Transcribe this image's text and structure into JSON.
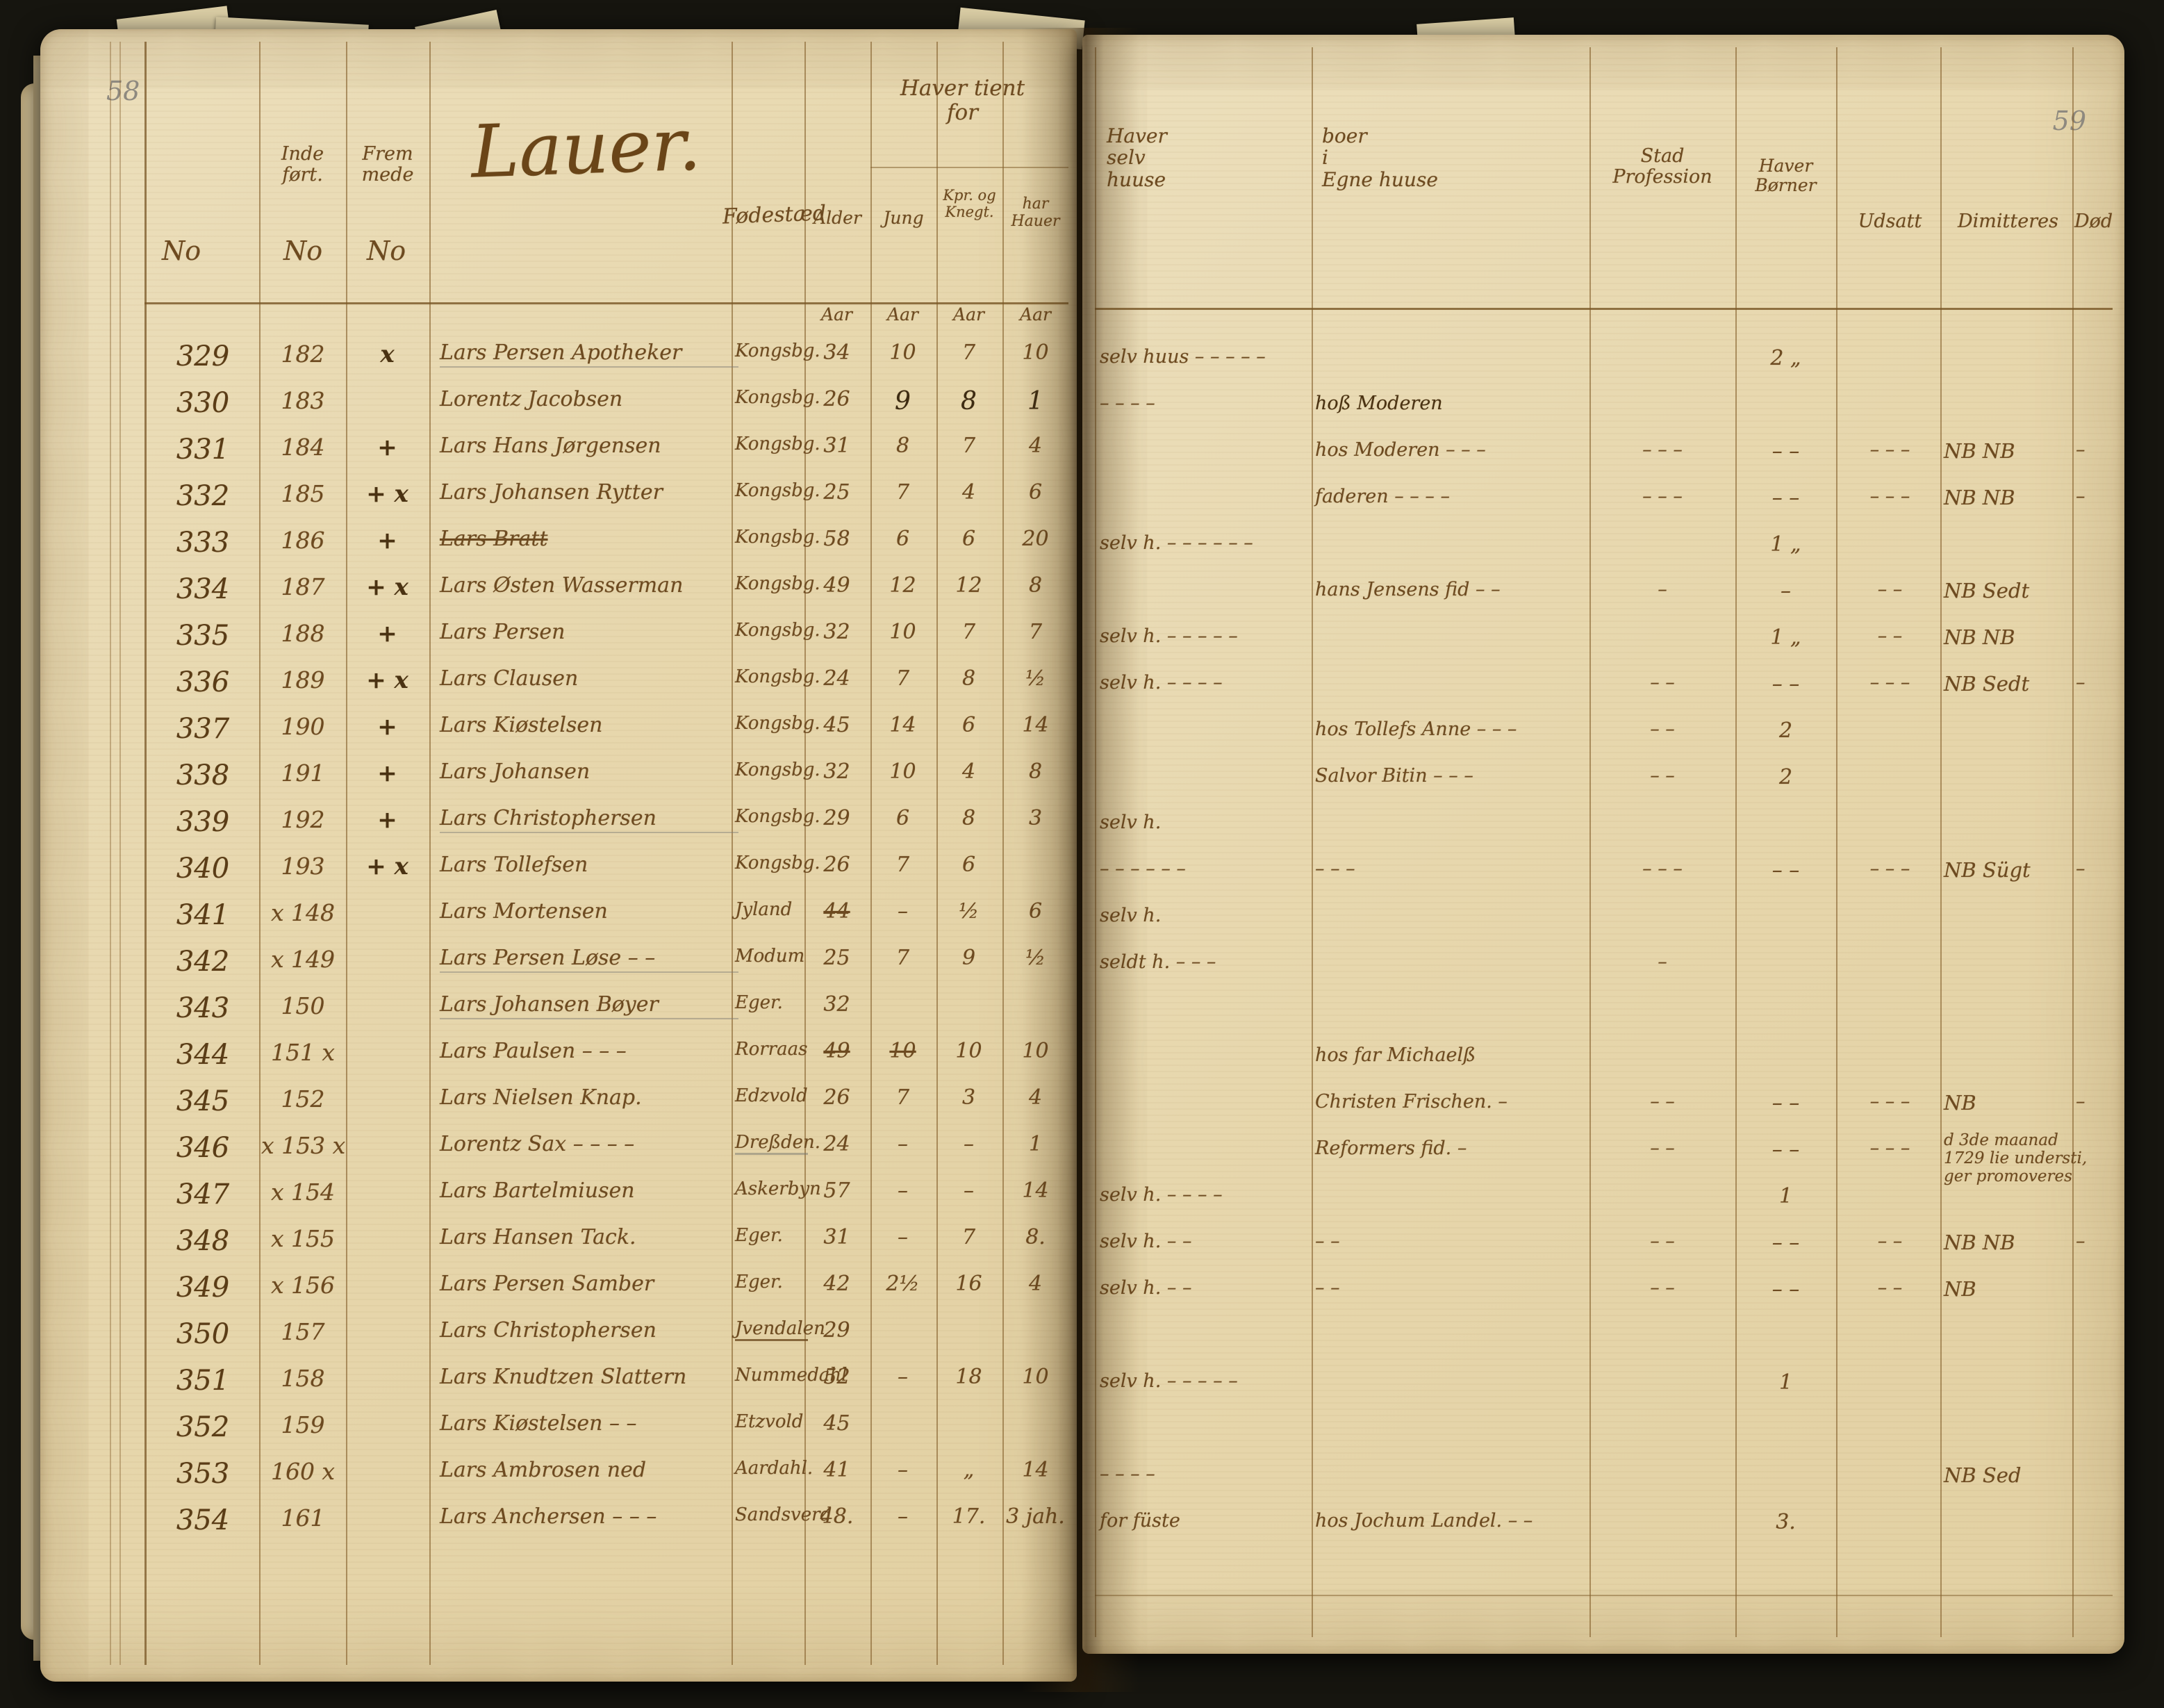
{
  "pages": {
    "left_folio": "58",
    "right_folio": "59"
  },
  "left_page": {
    "section_heading": "Lauer.",
    "headers": {
      "colB_l1": "Inde",
      "colB_l2": "ført.",
      "colC_l1": "Frem",
      "colC_l2": "mede",
      "no_a": "No",
      "no_b": "No",
      "no_c": "No",
      "fodested": "Fødestæd",
      "tient_l1": "Haver tient",
      "tient_l2": "for",
      "alder": "Alder",
      "jung": "Jung",
      "kpr_l1": "Kpr. og",
      "kpr_l2": "Knegt.",
      "hauer_l1": "har",
      "hauer_l2": "Hauer",
      "aar": "Aar"
    }
  },
  "right_page": {
    "headers": {
      "selv_l1": "Haver",
      "selv_l2": "selv",
      "selv_l3": "huuse",
      "hos_l1": "boer",
      "hos_l2": "i",
      "hos_l3": "Egne huuse",
      "prof_l1": "Stad",
      "prof_l2": "Profession",
      "born_l1": "Haver",
      "born_l2": "Børner",
      "udsatt": "Udsatt",
      "dimitteres": "Dimitteres",
      "dod": "Død"
    }
  },
  "rows": [
    {
      "no": "329",
      "no2": "182",
      "mark": "x",
      "name": "Lars Persen Apotheker",
      "fod": "Kongsbg.",
      "a1": "34",
      "a2": "10",
      "a3": "7",
      "a4": "10",
      "selv": "selv huus – – – – –",
      "hos": "",
      "prof": "",
      "born": "2 „",
      "uds": "",
      "dim": "",
      "dod": ""
    },
    {
      "no": "330",
      "no2": "183",
      "mark": "",
      "name": "Lorentz Jacobsen",
      "fod": "Kongsbg.",
      "a1": "26",
      "a2": "9",
      "a3": "8",
      "a4": "1",
      "selv": "– – – –",
      "hos": "hoß Moderen",
      "prof": "",
      "born": "",
      "uds": "",
      "dim": "",
      "dod": ""
    },
    {
      "no": "331",
      "no2": "184",
      "mark": "+",
      "name": "Lars Hans Jørgensen",
      "fod": "Kongsbg.",
      "a1": "31",
      "a2": "8",
      "a3": "7",
      "a4": "4",
      "selv": "",
      "hos": "hos Moderen – – –",
      "prof": "– – –",
      "born": "– –",
      "uds": "– – –",
      "dim": "NB NB",
      "dod": "–"
    },
    {
      "no": "332",
      "no2": "185",
      "mark": "+ x",
      "name": "Lars Johansen Rytter",
      "fod": "Kongsbg.",
      "a1": "25",
      "a2": "7",
      "a3": "4",
      "a4": "6",
      "selv": "",
      "hos": "faderen – – – –",
      "prof": "– – –",
      "born": "– –",
      "uds": "– – –",
      "dim": "NB NB",
      "dod": "–"
    },
    {
      "no": "333",
      "no2": "186",
      "mark": "+",
      "name": "Lars Bratt",
      "fod": "Kongsbg.",
      "a1": "58",
      "a2": "6",
      "a3": "6",
      "a4": "20",
      "selv": "selv h. – – – – – –",
      "hos": "",
      "prof": "",
      "born": "1 „",
      "uds": "",
      "dim": "",
      "dod": ""
    },
    {
      "no": "334",
      "no2": "187",
      "mark": "+ x",
      "name": "Lars Østen Wasserman",
      "fod": "Kongsbg.",
      "a1": "49",
      "a2": "12",
      "a3": "12",
      "a4": "8",
      "selv": "",
      "hos": "hans Jensens fid – –",
      "prof": "–",
      "born": "–",
      "uds": "– –",
      "dim": "NB Sedt",
      "dod": ""
    },
    {
      "no": "335",
      "no2": "188",
      "mark": "+",
      "name": "Lars Persen",
      "fod": "Kongsbg.",
      "a1": "32",
      "a2": "10",
      "a3": "7",
      "a4": "7",
      "selv": "selv h. – – – – –",
      "hos": "",
      "prof": "",
      "born": "1 „",
      "uds": "– –",
      "dim": "NB NB",
      "dod": ""
    },
    {
      "no": "336",
      "no2": "189",
      "mark": "+ x",
      "name": "Lars Clausen",
      "fod": "Kongsbg.",
      "a1": "24",
      "a2": "7",
      "a3": "8",
      "a4": "½",
      "selv": "selv h. – – – –",
      "hos": "",
      "prof": "– –",
      "born": "– –",
      "uds": "– – –",
      "dim": "NB Sedt",
      "dod": "–"
    },
    {
      "no": "337",
      "no2": "190",
      "mark": "+",
      "name": "Lars Kiøstelsen",
      "fod": "Kongsbg.",
      "a1": "45",
      "a2": "14",
      "a3": "6",
      "a4": "14",
      "selv": "",
      "hos": "hos Tollefs Anne – – –",
      "prof": "– –",
      "born": "2",
      "uds": "",
      "dim": "",
      "dod": ""
    },
    {
      "no": "338",
      "no2": "191",
      "mark": "+",
      "name": "Lars Johansen",
      "fod": "Kongsbg.",
      "a1": "32",
      "a2": "10",
      "a3": "4",
      "a4": "8",
      "selv": "",
      "hos": "Salvor Bitin – – –",
      "prof": "– –",
      "born": "2",
      "uds": "",
      "dim": "",
      "dod": ""
    },
    {
      "no": "339",
      "no2": "192",
      "mark": "+",
      "name": "Lars Christophersen",
      "fod": "Kongsbg.",
      "a1": "29",
      "a2": "6",
      "a3": "8",
      "a4": "3",
      "selv": "selv h.",
      "hos": "",
      "prof": "",
      "born": "",
      "uds": "",
      "dim": "",
      "dod": ""
    },
    {
      "no": "340",
      "no2": "193",
      "mark": "+ x",
      "name": "Lars Tollefsen",
      "fod": "Kongsbg.",
      "a1": "26",
      "a2": "7",
      "a3": "6",
      "a4": "",
      "selv": "– – – – – –",
      "hos": "– – –",
      "prof": "– – –",
      "born": "– –",
      "uds": "– – –",
      "dim": "NB Sügt",
      "dod": "–"
    },
    {
      "no": "341",
      "no2": "x 148",
      "mark": "",
      "name": "Lars Mortensen",
      "fod": "Jyland",
      "a1": "44",
      "a2": "–",
      "a3": "½",
      "a4": "6",
      "selv": "selv h.",
      "hos": "",
      "prof": "",
      "born": "",
      "uds": "",
      "dim": "",
      "dod": ""
    },
    {
      "no": "342",
      "no2": "x 149",
      "mark": "",
      "name": "Lars Persen Løse – –",
      "fod": "Modum",
      "a1": "25",
      "a2": "7",
      "a3": "9",
      "a4": "½",
      "selv": "seldt h. – – –",
      "hos": "",
      "prof": "–",
      "born": "",
      "uds": "",
      "dim": "",
      "dod": ""
    },
    {
      "no": "343",
      "no2": "150",
      "mark": "",
      "name": "Lars Johansen Bøyer",
      "fod": "Eger.",
      "a1": "32",
      "a2": "",
      "a3": "",
      "a4": "",
      "selv": "",
      "hos": "",
      "prof": "",
      "born": "",
      "uds": "",
      "dim": "",
      "dod": ""
    },
    {
      "no": "344",
      "no2": "151 x",
      "mark": "",
      "name": "Lars Paulsen – – –",
      "fod": "Rorraas",
      "a1": "49",
      "a2": "10",
      "a3": "10",
      "a4": "10",
      "selv": "",
      "hos": "hos far Michaelß",
      "prof": "",
      "born": "",
      "uds": "",
      "dim": "",
      "dod": ""
    },
    {
      "no": "345",
      "no2": "152",
      "mark": "",
      "name": "Lars Nielsen Knap.",
      "fod": "Edzvold",
      "a1": "26",
      "a2": "7",
      "a3": "3",
      "a4": "4",
      "selv": "",
      "hos": "Christen Frischen. –",
      "prof": "– –",
      "born": "– –",
      "uds": "– – –",
      "dim": "NB",
      "dod": "–"
    },
    {
      "no": "346",
      "no2": "x 153 x",
      "mark": "",
      "name": "Lorentz Sax – – – –",
      "fod": "Dreßden.",
      "a1": "24",
      "a2": "–",
      "a3": "–",
      "a4": "1",
      "selv": "",
      "hos": "Reformers fid. –",
      "prof": "– –",
      "born": "– –",
      "uds": "– – –",
      "dim": "d 3de maanad 1729 lie understi, ger promoveres",
      "dod": ""
    },
    {
      "no": "347",
      "no2": "x 154",
      "mark": "",
      "name": "Lars Bartelmiusen",
      "fod": "Askerbyn",
      "a1": "57",
      "a2": "–",
      "a3": "–",
      "a4": "14",
      "selv": "selv h. – – – –",
      "hos": "",
      "prof": "",
      "born": "1",
      "uds": "",
      "dim": "",
      "dod": ""
    },
    {
      "no": "348",
      "no2": "x 155",
      "mark": "",
      "name": "Lars Hansen Tack.",
      "fod": "Eger.",
      "a1": "31",
      "a2": "–",
      "a3": "7",
      "a4": "8.",
      "selv": "selv h. – –",
      "hos": "– –",
      "prof": "– –",
      "born": "– –",
      "uds": "– –",
      "dim": "NB NB",
      "dod": "–"
    },
    {
      "no": "349",
      "no2": "x 156",
      "mark": "",
      "name": "Lars Persen Samber",
      "fod": "Eger.",
      "a1": "42",
      "a2": "2½",
      "a3": "16",
      "a4": "4",
      "selv": "selv h. – –",
      "hos": "– –",
      "prof": "– –",
      "born": "– –",
      "uds": "– –",
      "dim": "NB",
      "dod": ""
    },
    {
      "no": "350",
      "no2": "157",
      "mark": "",
      "name": "Lars Christophersen",
      "fod": "Jvendalen",
      "a1": "29",
      "a2": "",
      "a3": "",
      "a4": "",
      "selv": "",
      "hos": "",
      "prof": "",
      "born": "",
      "uds": "",
      "dim": "",
      "dod": ""
    },
    {
      "no": "351",
      "no2": "158",
      "mark": "",
      "name": "Lars Knudtzen Slattern",
      "fod": "Nummedahl",
      "a1": "52",
      "a2": "–",
      "a3": "18",
      "a4": "10",
      "selv": "selv h. – – – – –",
      "hos": "",
      "prof": "",
      "born": "1",
      "uds": "",
      "dim": "",
      "dod": ""
    },
    {
      "no": "352",
      "no2": "159",
      "mark": "",
      "name": "Lars Kiøstelsen – –",
      "fod": "Etzvold",
      "a1": "45",
      "a2": "",
      "a3": "",
      "a4": "",
      "selv": "",
      "hos": "",
      "prof": "",
      "born": "",
      "uds": "",
      "dim": "",
      "dod": ""
    },
    {
      "no": "353",
      "no2": "160 x",
      "mark": "",
      "name": "Lars Ambrosen ned",
      "fod": "Aardahl.",
      "a1": "41",
      "a2": "–",
      "a3": "„",
      "a4": "14",
      "selv": "– – – –",
      "hos": "",
      "prof": "",
      "born": "",
      "uds": "",
      "dim": "NB Sed",
      "dod": ""
    },
    {
      "no": "354",
      "no2": "161",
      "mark": "",
      "name": "Lars Anchersen – – –",
      "fod": "Sandsverd",
      "a1": "48.",
      "a2": "–",
      "a3": "17.",
      "a4": "3 jah.",
      "selv": "for füste",
      "hos": "hos Jochum Landel. – –",
      "prof": "",
      "born": "3.",
      "uds": "",
      "dim": "",
      "dod": ""
    }
  ]
}
